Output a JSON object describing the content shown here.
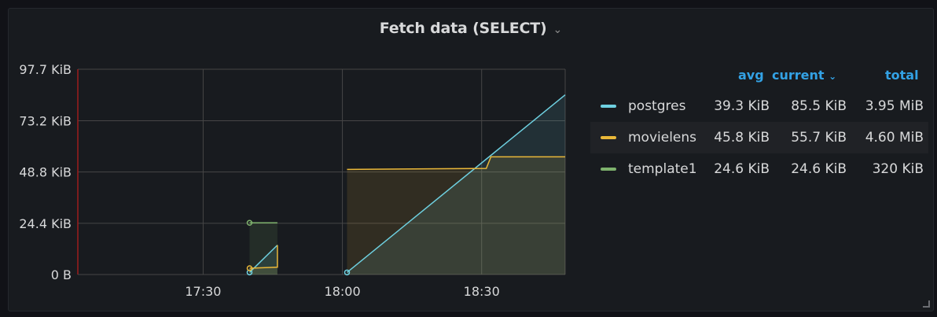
{
  "panel": {
    "title": "Fetch data (SELECT)",
    "title_chevron_icon": "chevron-down-icon"
  },
  "colors": {
    "postgres": "#6ed0e0",
    "movielens": "#eab839",
    "template1": "#7eb26d",
    "grid": "#464646",
    "header_accent": "#33a2e5"
  },
  "legend": {
    "columns": {
      "avg": "avg",
      "current": "current",
      "total": "total"
    },
    "sort_icon": "chevron-down-icon",
    "rows": [
      {
        "name": "postgres",
        "avg": "39.3 KiB",
        "current": "85.5 KiB",
        "total": "3.95 MiB"
      },
      {
        "name": "movielens",
        "avg": "45.8 KiB",
        "current": "55.7 KiB",
        "total": "4.60 MiB"
      },
      {
        "name": "template1",
        "avg": "24.6 KiB",
        "current": "24.6 KiB",
        "total": "320 KiB"
      }
    ]
  },
  "chart_data": {
    "type": "area",
    "title": "Fetch data (SELECT)",
    "xlabel": "",
    "ylabel": "",
    "y_unit": "KiB",
    "ylim": [
      0,
      97.7
    ],
    "y_ticks": [
      0,
      24.4,
      48.8,
      73.2,
      97.7
    ],
    "y_tick_labels": [
      "0 B",
      "24.4 KiB",
      "48.8 KiB",
      "73.2 KiB",
      "97.7 KiB"
    ],
    "xlim": [
      "17:03",
      "18:48"
    ],
    "x_ticks": [
      "17:30",
      "18:00",
      "18:30"
    ],
    "grid": true,
    "legend_placement": "right",
    "series": [
      {
        "name": "postgres",
        "color": "#6ed0e0",
        "points": [
          [
            "17:40",
            1
          ],
          [
            "17:46",
            14
          ],
          null,
          [
            "18:01",
            1
          ],
          [
            "18:48",
            85.5
          ]
        ]
      },
      {
        "name": "movielens",
        "color": "#eab839",
        "points": [
          [
            "17:40",
            3
          ],
          [
            "17:46",
            3.5
          ],
          [
            "17:46",
            14
          ],
          null,
          [
            "18:01",
            50
          ],
          [
            "18:31",
            50.5
          ],
          [
            "18:32",
            56
          ],
          [
            "18:48",
            56
          ]
        ]
      },
      {
        "name": "template1",
        "color": "#7eb26d",
        "points": [
          [
            "17:40",
            24.6
          ],
          [
            "17:46",
            24.6
          ]
        ]
      }
    ]
  }
}
